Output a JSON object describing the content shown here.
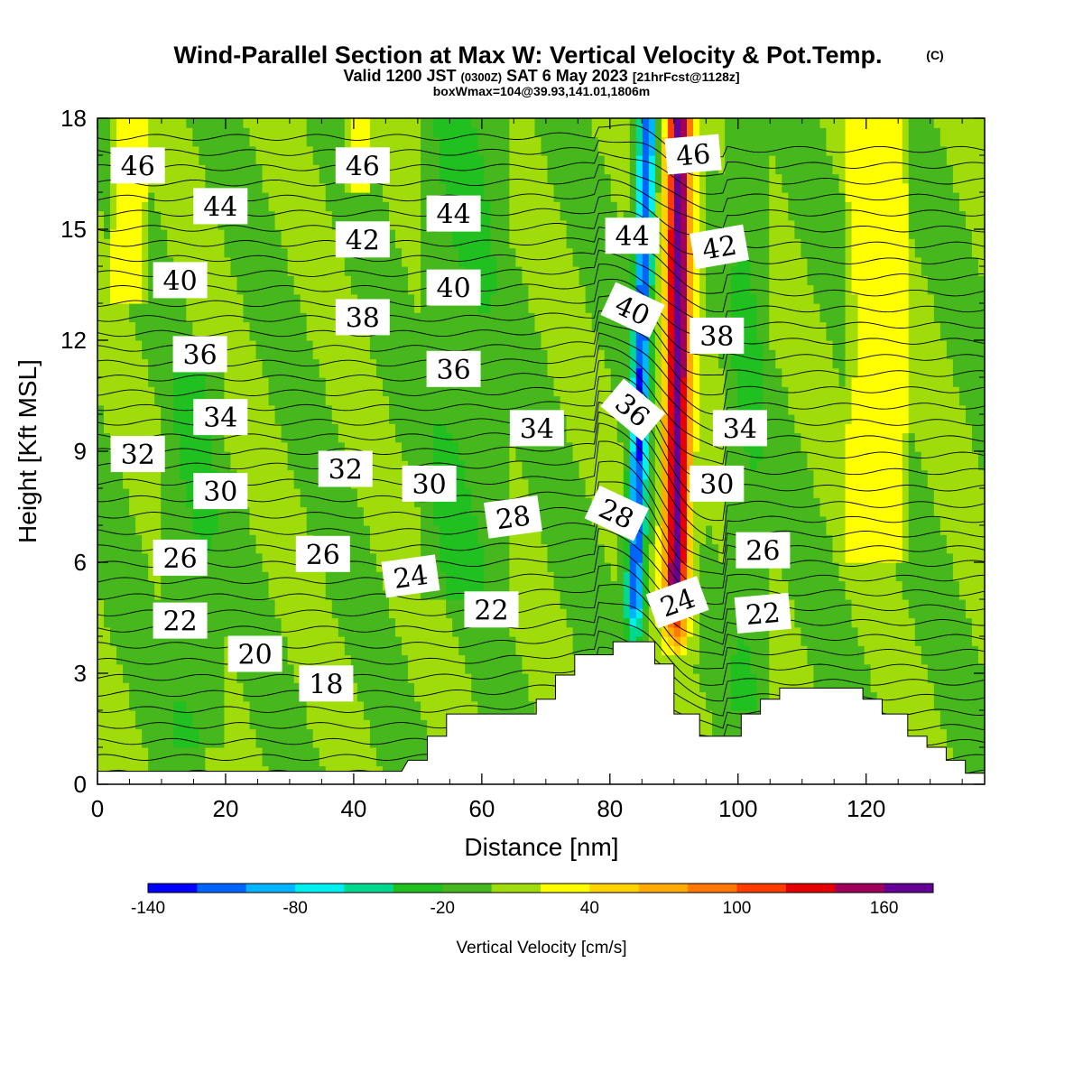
{
  "titles": {
    "main": "Wind-Parallel Section at Max W: Vertical Velocity & Pot.Temp.",
    "main_tag": "(C)",
    "valid_a": "Valid 1200 JST",
    "valid_b": "(0300Z)",
    "valid_c": "SAT 6 May 2023",
    "valid_d": "[21hrFcst@1128z]",
    "box": "boxWmax=104@39.93,141.01,1806m"
  },
  "chart_data": {
    "type": "heatmap",
    "xlabel": "Distance [nm]",
    "ylabel": "Height [Kft MSL]",
    "xlim": [
      0,
      138.5
    ],
    "ylim": [
      0,
      18
    ],
    "x_ticks": [
      0,
      20,
      40,
      60,
      80,
      100,
      120
    ],
    "y_ticks": [
      0,
      3,
      6,
      9,
      12,
      15,
      18
    ],
    "colorbar": {
      "label": "Vertical Velocity [cm/s]",
      "range": [
        -140,
        180
      ],
      "tick_values": [
        -140,
        -80,
        -20,
        40,
        100,
        160
      ],
      "tick_labels": [
        "-140",
        "-80",
        "-20",
        "40",
        "100",
        "160"
      ],
      "colors": [
        "#0000ff",
        "#0064ff",
        "#00b4ff",
        "#00f0f0",
        "#00d890",
        "#20c020",
        "#46b81e",
        "#a0dc0a",
        "#ffff00",
        "#ffd200",
        "#ffaa00",
        "#ff7800",
        "#ff3c00",
        "#e60000",
        "#a0005a",
        "#640096"
      ]
    },
    "background_level": 0,
    "features": [
      {
        "type": "updraft_core",
        "x": 90.5,
        "tilt_nm_per_kft": 0.04,
        "width_nm": 2.0,
        "peak_cm_s": 170
      },
      {
        "type": "downdraft_core",
        "x": 84.5,
        "tilt_nm_per_kft": 0.15,
        "width_nm": 1.4,
        "peak_cm_s": -120
      },
      {
        "type": "weak_updraft_band",
        "x_range": [
          117,
          127
        ],
        "height_range_kft": [
          6,
          18
        ],
        "value_cm_s": 30
      },
      {
        "type": "weak_updraft_band",
        "x_range": [
          2,
          8
        ],
        "height_range_kft": [
          13,
          18
        ],
        "value_cm_s": 30
      },
      {
        "type": "weak_updraft_band",
        "x_range": [
          39,
          43
        ],
        "height_range_kft": [
          16,
          18
        ],
        "value_cm_s": 30
      },
      {
        "type": "weak_downdraft_band",
        "x_range": [
          50,
          64
        ],
        "height_range_kft": [
          5,
          18
        ],
        "value_cm_s": -20
      },
      {
        "type": "weak_downdraft_band",
        "x_range": [
          10,
          20
        ],
        "height_range_kft": [
          1,
          12
        ],
        "value_cm_s": -20
      },
      {
        "type": "weak_downdraft_band",
        "x_range": [
          98,
          105
        ],
        "height_range_kft": [
          2,
          18
        ],
        "value_cm_s": -20
      }
    ],
    "terrain_kft": [
      {
        "x": 0,
        "h": 0.35
      },
      {
        "x": 47.5,
        "h": 0.35
      },
      {
        "x": 48.5,
        "h": 0.65
      },
      {
        "x": 51.5,
        "h": 0.65
      },
      {
        "x": 51.5,
        "h": 1.3
      },
      {
        "x": 54.5,
        "h": 1.3
      },
      {
        "x": 54.5,
        "h": 1.9
      },
      {
        "x": 68.5,
        "h": 1.9
      },
      {
        "x": 68.5,
        "h": 2.3
      },
      {
        "x": 71.5,
        "h": 2.3
      },
      {
        "x": 71.5,
        "h": 2.95
      },
      {
        "x": 74.5,
        "h": 2.95
      },
      {
        "x": 74.5,
        "h": 3.5
      },
      {
        "x": 80.5,
        "h": 3.5
      },
      {
        "x": 80.5,
        "h": 3.85
      },
      {
        "x": 87.0,
        "h": 3.85
      },
      {
        "x": 87.0,
        "h": 3.25
      },
      {
        "x": 90.0,
        "h": 3.25
      },
      {
        "x": 90.0,
        "h": 1.9
      },
      {
        "x": 94.0,
        "h": 1.9
      },
      {
        "x": 94.0,
        "h": 1.3
      },
      {
        "x": 100.5,
        "h": 1.3
      },
      {
        "x": 100.5,
        "h": 1.9
      },
      {
        "x": 103.5,
        "h": 1.9
      },
      {
        "x": 103.5,
        "h": 2.3
      },
      {
        "x": 106.5,
        "h": 2.3
      },
      {
        "x": 106.5,
        "h": 2.6
      },
      {
        "x": 119.5,
        "h": 2.6
      },
      {
        "x": 119.5,
        "h": 2.3
      },
      {
        "x": 122.5,
        "h": 2.3
      },
      {
        "x": 122.5,
        "h": 1.9
      },
      {
        "x": 126.5,
        "h": 1.9
      },
      {
        "x": 126.5,
        "h": 1.3
      },
      {
        "x": 129.5,
        "h": 1.3
      },
      {
        "x": 129.5,
        "h": 1.0
      },
      {
        "x": 132.5,
        "h": 1.0
      },
      {
        "x": 132.5,
        "h": 0.65
      },
      {
        "x": 135.5,
        "h": 0.65
      },
      {
        "x": 135.5,
        "h": 0.3
      },
      {
        "x": 138.5,
        "h": 0.3
      }
    ],
    "theta_contours": {
      "spacing_kft": 0.42,
      "start_kft": 0.1,
      "count": 42
    },
    "contour_labels": [
      {
        "text": "46",
        "x": 6.3,
        "y": 16.7,
        "rot": 0
      },
      {
        "text": "44",
        "x": 19.2,
        "y": 15.6,
        "rot": 0
      },
      {
        "text": "40",
        "x": 12.9,
        "y": 13.6,
        "rot": 0
      },
      {
        "text": "36",
        "x": 16.0,
        "y": 11.6,
        "rot": 0
      },
      {
        "text": "34",
        "x": 19.2,
        "y": 9.9,
        "rot": 0
      },
      {
        "text": "32",
        "x": 6.3,
        "y": 8.9,
        "rot": 0
      },
      {
        "text": "30",
        "x": 19.2,
        "y": 7.9,
        "rot": 0
      },
      {
        "text": "26",
        "x": 12.9,
        "y": 6.1,
        "rot": 0
      },
      {
        "text": "22",
        "x": 12.9,
        "y": 4.4,
        "rot": 0
      },
      {
        "text": "20",
        "x": 24.6,
        "y": 3.5,
        "rot": 0
      },
      {
        "text": "18",
        "x": 35.7,
        "y": 2.7,
        "rot": 0
      },
      {
        "text": "46",
        "x": 41.4,
        "y": 16.7,
        "rot": 0
      },
      {
        "text": "42",
        "x": 41.4,
        "y": 14.7,
        "rot": 0
      },
      {
        "text": "38",
        "x": 41.4,
        "y": 12.6,
        "rot": 0
      },
      {
        "text": "32",
        "x": 38.7,
        "y": 8.5,
        "rot": 0
      },
      {
        "text": "26",
        "x": 35.2,
        "y": 6.2,
        "rot": 0
      },
      {
        "text": "44",
        "x": 55.6,
        "y": 15.4,
        "rot": 0
      },
      {
        "text": "40",
        "x": 55.6,
        "y": 13.4,
        "rot": 0
      },
      {
        "text": "36",
        "x": 55.6,
        "y": 11.2,
        "rot": 0
      },
      {
        "text": "34",
        "x": 68.6,
        "y": 9.6,
        "rot": 0
      },
      {
        "text": "30",
        "x": 51.8,
        "y": 8.1,
        "rot": 0
      },
      {
        "text": "28",
        "x": 64.9,
        "y": 7.2,
        "rot": -8
      },
      {
        "text": "24",
        "x": 48.9,
        "y": 5.6,
        "rot": -8
      },
      {
        "text": "22",
        "x": 61.5,
        "y": 4.7,
        "rot": 0
      },
      {
        "text": "44",
        "x": 83.5,
        "y": 14.8,
        "rot": 0
      },
      {
        "text": "40",
        "x": 83.5,
        "y": 12.8,
        "rot": 25
      },
      {
        "text": "36",
        "x": 83.5,
        "y": 10.1,
        "rot": 40
      },
      {
        "text": "28",
        "x": 81.0,
        "y": 7.3,
        "rot": 25
      },
      {
        "text": "24",
        "x": 90.6,
        "y": 4.9,
        "rot": -20
      },
      {
        "text": "46",
        "x": 93.0,
        "y": 17.0,
        "rot": -5
      },
      {
        "text": "42",
        "x": 97.1,
        "y": 14.5,
        "rot": -10
      },
      {
        "text": "38",
        "x": 96.7,
        "y": 12.1,
        "rot": 0
      },
      {
        "text": "34",
        "x": 100.3,
        "y": 9.6,
        "rot": 0
      },
      {
        "text": "30",
        "x": 96.7,
        "y": 8.1,
        "rot": 0
      },
      {
        "text": "26",
        "x": 103.9,
        "y": 6.3,
        "rot": 0
      },
      {
        "text": "22",
        "x": 103.9,
        "y": 4.6,
        "rot": -5
      }
    ]
  }
}
